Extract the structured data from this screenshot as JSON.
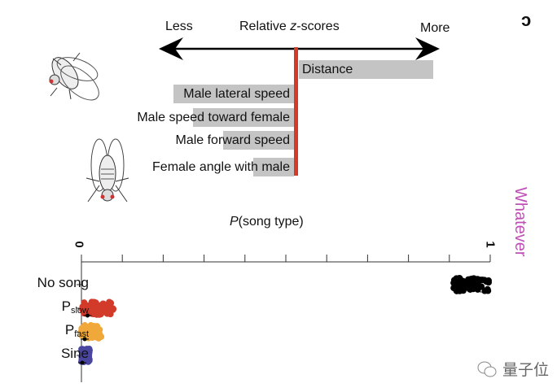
{
  "panel_letter": "c",
  "side_label": "Whatever",
  "watermark": "量子位",
  "colors": {
    "zline": "#d23a2a",
    "bar": "#c4c4c4",
    "no_song": "#000000",
    "p_slow": "#d23a2a",
    "p_fast": "#f0a83a",
    "sine": "#4a46a0",
    "side_label": "#c04fb8"
  },
  "chart_data": [
    {
      "type": "bar",
      "orientation": "horizontal",
      "title": "Relative z-scores",
      "title_italic_part": "z",
      "title_before": "Relative ",
      "title_after": "-scores",
      "left_label": "Less",
      "right_label": "More",
      "categories": [
        "Distance",
        "Male lateral speed",
        "Male speed toward female",
        "Male forward speed",
        "Female angle with male"
      ],
      "values": [
        0.95,
        -0.85,
        -0.71,
        -0.5,
        -0.29
      ],
      "xlim": [
        -1,
        1
      ]
    },
    {
      "type": "scatter",
      "xlabel": "P(song type)",
      "xlabel_italic": "P",
      "xlabel_rest": "(song type)",
      "xlim": [
        0,
        1
      ],
      "xticks": [
        "0",
        "1"
      ],
      "n_minor_ticks": 10,
      "categories": [
        {
          "label": "No song",
          "sub": "",
          "range": [
            0.91,
            1.0
          ],
          "mean": 0.985
        },
        {
          "label": "P",
          "sub": "slow",
          "range": [
            0.0,
            0.08
          ],
          "mean": 0.015
        },
        {
          "label": "P",
          "sub": "fast",
          "range": [
            0.0,
            0.05
          ],
          "mean": 0.008
        },
        {
          "label": "Sine",
          "sub": "",
          "range": [
            0.0,
            0.02
          ],
          "mean": 0.002
        }
      ]
    }
  ]
}
